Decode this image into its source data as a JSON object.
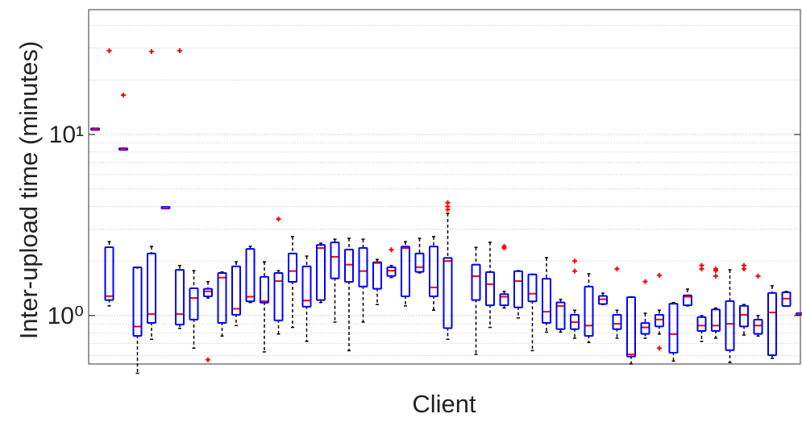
{
  "chart_data": {
    "type": "box",
    "x_label": "Client",
    "y_label": "Inter-upload time (minutes)",
    "log_scale_y": true,
    "ylim": [
      0.54,
      48.9
    ],
    "yticks": [
      {
        "value": 1,
        "label": "10⁰"
      },
      {
        "value": 10,
        "label": "10¹"
      }
    ],
    "minor_grid": [
      0.6,
      0.7,
      0.8,
      0.9,
      2,
      3,
      4,
      5,
      6,
      7,
      8,
      9,
      20,
      30,
      40
    ],
    "box_color": "#0000ff",
    "median_color": "#ff0000",
    "whisker_color": "#000000",
    "outlier_color": "#ff0000",
    "boxes": [
      {
        "min": 10.7,
        "q1": 10.7,
        "median": 10.7,
        "q3": 10.7,
        "max": 10.7
      },
      {
        "min": 1.13,
        "q1": 1.23,
        "median": 1.28,
        "q3": 2.36,
        "max": 2.56,
        "outliers": [
          29
        ]
      },
      {
        "min": 8.3,
        "q1": 8.3,
        "median": 8.3,
        "q3": 8.3,
        "max": 8.3,
        "outliers": [
          16.5
        ]
      },
      {
        "min": 0.48,
        "q1": 0.78,
        "median": 0.87,
        "q3": 1.83,
        "max": 1.83
      },
      {
        "min": 0.74,
        "q1": 0.92,
        "median": 1.02,
        "q3": 2.18,
        "max": 2.41,
        "outliers": [
          28.7
        ]
      },
      {
        "min": 3.94,
        "q1": 3.94,
        "median": 3.94,
        "q3": 3.94,
        "max": 3.94
      },
      {
        "min": 0.85,
        "q1": 0.9,
        "median": 1.02,
        "q3": 1.77,
        "max": 1.89,
        "outliers": [
          29
        ]
      },
      {
        "min": 0.66,
        "q1": 0.96,
        "median": 1.25,
        "q3": 1.4,
        "max": 1.77
      },
      {
        "min": 1.25,
        "q1": 1.29,
        "median": 1.36,
        "q3": 1.39,
        "max": 1.54,
        "outliers": [
          0.57
        ]
      },
      {
        "min": 0.77,
        "q1": 0.92,
        "median": 1.62,
        "q3": 1.7,
        "max": 1.74
      },
      {
        "min": 0.88,
        "q1": 1.02,
        "median": 1.09,
        "q3": 1.85,
        "max": 1.98
      },
      {
        "min": 1.18,
        "q1": 1.21,
        "median": 1.27,
        "q3": 2.31,
        "max": 2.41
      },
      {
        "min": 0.63,
        "q1": 1.19,
        "median": 1.2,
        "q3": 1.62,
        "max": 1.98
      },
      {
        "min": 0.79,
        "q1": 0.95,
        "median": 1.55,
        "q3": 1.7,
        "max": 1.77,
        "outliers": [
          3.41
        ]
      },
      {
        "min": 0.86,
        "q1": 1.55,
        "median": 1.76,
        "q3": 2.18,
        "max": 2.73
      },
      {
        "min": 0.72,
        "q1": 1.13,
        "median": 1.21,
        "q3": 1.85,
        "max": 2.13
      },
      {
        "min": 1.18,
        "q1": 1.23,
        "median": 2.36,
        "q3": 2.43,
        "max": 2.51
      },
      {
        "min": 0.92,
        "q1": 1.62,
        "median": 2.11,
        "q3": 2.51,
        "max": 2.64
      },
      {
        "min": 0.64,
        "q1": 1.55,
        "median": 1.91,
        "q3": 2.29,
        "max": 2.67
      },
      {
        "min": 0.92,
        "q1": 1.46,
        "median": 1.76,
        "q3": 2.34,
        "max": 2.64
      },
      {
        "min": 1.15,
        "q1": 1.42,
        "median": 1.95,
        "q3": 1.95,
        "max": 2.04
      },
      {
        "min": 1.62,
        "q1": 1.67,
        "median": 1.77,
        "q3": 1.83,
        "max": 1.89,
        "outliers": [
          2.31
        ]
      },
      {
        "min": 1.13,
        "q1": 1.29,
        "median": 2.36,
        "q3": 2.38,
        "max": 2.56
      },
      {
        "min": 1.72,
        "q1": 1.76,
        "median": 1.85,
        "q3": 2.18,
        "max": 2.67
      },
      {
        "min": 1.07,
        "q1": 1.29,
        "median": 1.43,
        "q3": 2.38,
        "max": 2.73
      },
      {
        "min": 0.74,
        "q1": 0.86,
        "median": 2.0,
        "q3": 2.06,
        "max": 3.67,
        "outliers": [
          4.2,
          4.0,
          3.85
        ]
      },
      null,
      {
        "min": 0.61,
        "q1": 1.23,
        "median": 1.65,
        "q3": 1.89,
        "max": 2.38
      },
      {
        "min": 0.86,
        "q1": 1.15,
        "median": 1.49,
        "q3": 1.72,
        "max": 2.54
      },
      {
        "min": 1.1,
        "q1": 1.15,
        "median": 1.27,
        "q3": 1.3,
        "max": 1.36,
        "outliers": [
          2.41,
          2.36
        ]
      },
      {
        "min": 0.97,
        "q1": 1.12,
        "median": 1.55,
        "q3": 1.74,
        "max": 1.77
      },
      {
        "min": 0.64,
        "q1": 1.21,
        "median": 1.32,
        "q3": 1.67,
        "max": 1.69
      },
      {
        "min": 0.81,
        "q1": 0.92,
        "median": 1.05,
        "q3": 1.58,
        "max": 2.09
      },
      {
        "min": 0.81,
        "q1": 0.85,
        "median": 1.13,
        "q3": 1.17,
        "max": 1.23
      },
      {
        "min": 0.75,
        "q1": 0.85,
        "median": 0.92,
        "q3": 1.0,
        "max": 1.07,
        "outliers": [
          2.0,
          1.76
        ]
      },
      {
        "min": 0.71,
        "q1": 0.78,
        "median": 0.88,
        "q3": 1.43,
        "max": 1.7
      },
      {
        "min": 1.15,
        "q1": 1.17,
        "median": 1.23,
        "q3": 1.27,
        "max": 1.33
      },
      {
        "min": 0.75,
        "q1": 0.85,
        "median": 0.9,
        "q3": 1.0,
        "max": 1.07,
        "outliers": [
          1.81
        ]
      },
      {
        "min": 0.54,
        "q1": 0.6,
        "median": 0.61,
        "q3": 1.25,
        "max": 1.27
      },
      {
        "min": 0.75,
        "q1": 0.8,
        "median": 0.86,
        "q3": 0.9,
        "max": 1.03,
        "outliers": [
          1.54
        ]
      },
      {
        "min": 0.79,
        "q1": 0.88,
        "median": 0.95,
        "q3": 1.0,
        "max": 1.07,
        "outliers": [
          1.67,
          0.66
        ]
      },
      {
        "min": 0.56,
        "q1": 0.63,
        "median": 0.79,
        "q3": 1.15,
        "max": 1.18
      },
      {
        "min": 1.13,
        "q1": 1.15,
        "median": 1.27,
        "q3": 1.28,
        "max": 1.4
      },
      {
        "min": 0.72,
        "q1": 0.83,
        "median": 0.88,
        "q3": 0.97,
        "max": 1.0,
        "outliers": [
          1.89,
          1.81
        ]
      },
      {
        "min": 0.75,
        "q1": 0.83,
        "median": 0.88,
        "q3": 1.07,
        "max": 1.1,
        "outliers": [
          1.81,
          1.77,
          1.65
        ]
      },
      {
        "min": 0.55,
        "q1": 0.65,
        "median": 0.9,
        "q3": 1.19,
        "max": 1.79
      },
      {
        "min": 0.78,
        "q1": 0.88,
        "median": 1.01,
        "q3": 1.12,
        "max": 1.15,
        "outliers": [
          1.89,
          1.81
        ]
      },
      {
        "min": 0.77,
        "q1": 0.8,
        "median": 0.88,
        "q3": 0.94,
        "max": 1.0,
        "outliers": [
          1.65
        ]
      },
      {
        "min": 0.58,
        "q1": 0.61,
        "median": 1.04,
        "q3": 1.32,
        "max": 1.46
      },
      {
        "min": 1.13,
        "q1": 1.14,
        "median": 1.24,
        "q3": 1.33,
        "max": 1.36
      },
      {
        "min": 1.02,
        "q1": 1.02,
        "median": 1.02,
        "q3": 1.02,
        "max": 1.02
      }
    ]
  }
}
